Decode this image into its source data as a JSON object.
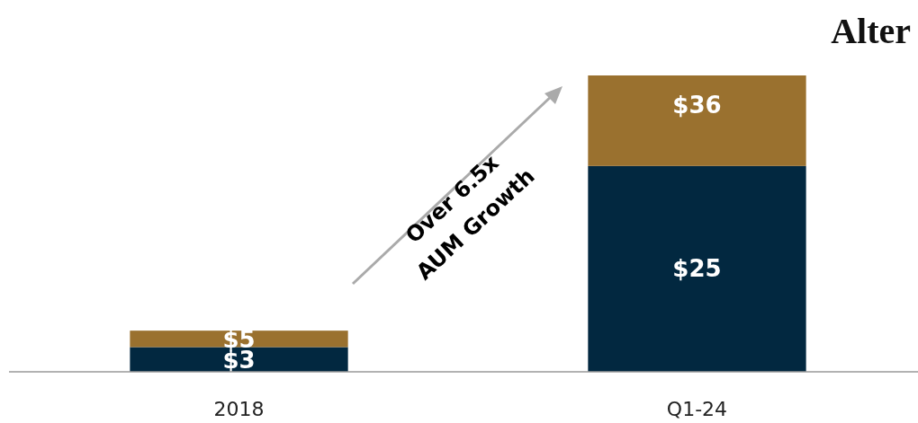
{
  "chart_data": {
    "type": "bar",
    "title": "Alter",
    "categories": [
      "2018",
      "Q1-24"
    ],
    "stacked": true,
    "series": [
      {
        "color": "#022840",
        "values": [
          3,
          25
        ],
        "value_labels": [
          "$3",
          "$25"
        ]
      },
      {
        "color": "#9a712f",
        "values": [
          2,
          11
        ]
      }
    ],
    "totals": [
      "$5",
      "$36"
    ],
    "annotations": [
      "Over 6.5x AUM Growth"
    ]
  }
}
